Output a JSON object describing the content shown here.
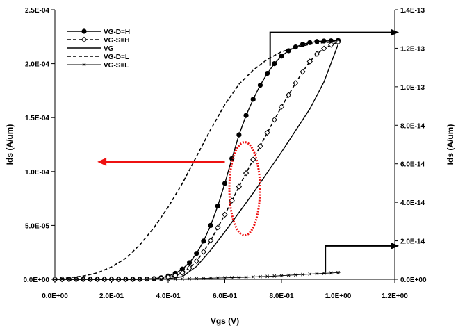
{
  "chart_data": {
    "type": "line",
    "xlabel": "Vgs (V)",
    "ylabel": "Ids (A/um)",
    "y2label": "Ids (A/um)",
    "xlim": [
      0,
      1.2
    ],
    "ylim": [
      0,
      0.00025
    ],
    "y2lim": [
      0,
      1.4e-13
    ],
    "x_ticks": [
      "0.0E+00",
      "2.0E-01",
      "4.0E-01",
      "6.0E-01",
      "8.0E-01",
      "1.0E+00",
      "1.2E+00"
    ],
    "y_ticks": [
      "0.0E+00",
      "5.0E-05",
      "1.0E-04",
      "1.5E-04",
      "2.0E-04",
      "2.5E-04"
    ],
    "y2_ticks": [
      "0.0E+00",
      "2.0E-14",
      "4.0E-14",
      "6.0E-14",
      "8.0E-14",
      "1.0E-13",
      "1.2E-13",
      "1.4E-13"
    ],
    "grid": false,
    "legend_position": "top-left",
    "series": [
      {
        "name": "VG-D=H",
        "axis": "left",
        "style": "solid-filled-circle",
        "x": [
          0.0,
          0.025,
          0.05,
          0.075,
          0.1,
          0.125,
          0.15,
          0.175,
          0.2,
          0.225,
          0.25,
          0.275,
          0.3,
          0.325,
          0.35,
          0.375,
          0.4,
          0.425,
          0.45,
          0.475,
          0.5,
          0.525,
          0.55,
          0.575,
          0.6,
          0.625,
          0.65,
          0.675,
          0.7,
          0.725,
          0.75,
          0.775,
          0.8,
          0.825,
          0.85,
          0.875,
          0.9,
          0.925,
          0.95,
          0.975,
          1.0
        ],
        "y": [
          0.0,
          0.0,
          0.0,
          0.0,
          0.0,
          0.0,
          0.0,
          0.0,
          0.0,
          0.0,
          0.0,
          0.0,
          0.0,
          3e-07,
          7e-07,
          1.5e-06,
          3e-06,
          5.5e-06,
          9.5e-06,
          1.55e-05,
          2.4e-05,
          3.55e-05,
          5e-05,
          6.8e-05,
          8.9e-05,
          0.000112,
          0.000134,
          0.000152,
          0.000167,
          0.00018,
          0.000191,
          0.0002,
          0.000207,
          0.000212,
          0.0002155,
          0.000218,
          0.0002195,
          0.0002205,
          0.000221,
          0.0002212,
          0.0002215
        ]
      },
      {
        "name": "VG-S=H",
        "axis": "left",
        "style": "dashed-open-diamond",
        "x": [
          0.0,
          0.025,
          0.05,
          0.075,
          0.1,
          0.125,
          0.15,
          0.175,
          0.2,
          0.225,
          0.25,
          0.275,
          0.3,
          0.325,
          0.35,
          0.375,
          0.4,
          0.425,
          0.45,
          0.475,
          0.5,
          0.525,
          0.55,
          0.575,
          0.6,
          0.625,
          0.65,
          0.675,
          0.7,
          0.725,
          0.75,
          0.775,
          0.8,
          0.825,
          0.85,
          0.875,
          0.9,
          0.925,
          0.95,
          0.975,
          1.0
        ],
        "y": [
          0.0,
          0.0,
          0.0,
          0.0,
          0.0,
          0.0,
          0.0,
          0.0,
          0.0,
          0.0,
          0.0,
          0.0,
          0.0,
          2e-07,
          5e-07,
          1e-06,
          2e-06,
          3.5e-06,
          6e-06,
          1.05e-05,
          1.7e-05,
          2.55e-05,
          3.6e-05,
          4.8e-05,
          6e-05,
          7.3e-05,
          8.6e-05,
          9.85e-05,
          0.000111,
          0.0001235,
          0.000136,
          0.000148,
          0.00016,
          0.000171,
          0.000182,
          0.0001925,
          0.000202,
          0.000209,
          0.000214,
          0.0002175,
          0.00022
        ]
      },
      {
        "name": "VG",
        "axis": "left",
        "style": "solid",
        "x": [
          0.0,
          0.3,
          0.4,
          0.45,
          0.5,
          0.55,
          0.6,
          0.65,
          0.7,
          0.75,
          0.8,
          0.85,
          0.9,
          0.95,
          1.0
        ],
        "y": [
          0.0,
          0.0,
          5e-07,
          2.5e-06,
          1.2e-05,
          2.7e-05,
          4.4e-05,
          6.2e-05,
          8e-05,
          9.9e-05,
          0.000118,
          0.000138,
          0.000158,
          0.000183,
          0.000218
        ]
      },
      {
        "name": "VG-D=L",
        "axis": "left",
        "style": "dashed",
        "x": [
          0.0,
          0.1,
          0.15,
          0.2,
          0.25,
          0.3,
          0.35,
          0.4,
          0.45,
          0.5,
          0.55,
          0.6,
          0.65,
          0.7,
          0.75,
          0.8,
          0.85,
          0.9,
          0.95,
          1.0
        ],
        "y": [
          0.0,
          3e-06,
          6e-06,
          1.15e-05,
          1.95e-05,
          3.2e-05,
          4.8e-05,
          6.7e-05,
          8.9e-05,
          0.000114,
          0.000139,
          0.000162,
          0.000181,
          0.000194,
          0.000204,
          0.000211,
          0.000215,
          0.000218,
          0.0002195,
          0.0002205
        ]
      },
      {
        "name": "VG-S=L",
        "axis": "right",
        "style": "solid-asterisk",
        "x": [
          0.0,
          0.025,
          0.05,
          0.075,
          0.1,
          0.125,
          0.15,
          0.175,
          0.2,
          0.225,
          0.25,
          0.275,
          0.3,
          0.325,
          0.35,
          0.375,
          0.4,
          0.425,
          0.45,
          0.475,
          0.5,
          0.525,
          0.55,
          0.575,
          0.6,
          0.625,
          0.65,
          0.675,
          0.7,
          0.725,
          0.75,
          0.775,
          0.8,
          0.825,
          0.85,
          0.875,
          0.9,
          0.925,
          0.95,
          0.975,
          1.0
        ],
        "y": [
          0,
          0,
          0,
          0,
          0,
          0,
          0,
          0,
          0,
          0,
          0,
          0,
          0,
          0,
          0,
          0,
          0,
          1e-16,
          2e-16,
          3e-16,
          4e-16,
          5e-16,
          6e-16,
          7e-16,
          8e-16,
          9e-16,
          1e-15,
          1.1e-15,
          1.3e-15,
          1.4e-15,
          1.5e-15,
          1.7e-15,
          1.9e-15,
          2.1e-15,
          2.3e-15,
          2.5e-15,
          2.7e-15,
          2.9e-15,
          3.1e-15,
          3.3e-15,
          3.5e-15
        ]
      }
    ],
    "annotations": {
      "ellipse": {
        "cx": 0.67,
        "cy": 8.4e-05,
        "color": "#ee1111"
      },
      "left_arrow": {
        "from_x": 0.6,
        "to_x": 0.15,
        "y": 0.000109,
        "color": "#ee1111"
      },
      "right_arrow_top": {
        "x": 0.76,
        "y_from": 0.000198,
        "y_to": 0.000229,
        "to_x": 1.21,
        "color": "#000000"
      },
      "right_arrow_bottom": {
        "x": 0.955,
        "y_from": 6e-06,
        "y_to": 3.1e-05,
        "to_x": 1.21,
        "color": "#000000"
      }
    }
  }
}
